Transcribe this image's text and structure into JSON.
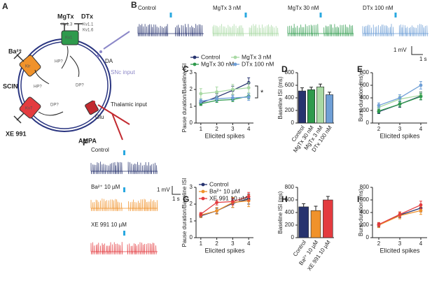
{
  "panel_labels": [
    "A",
    "B",
    "C",
    "D",
    "E",
    "F",
    "G",
    "H",
    "I"
  ],
  "diagram": {
    "ba": "Ba²⁺",
    "mgtx": "MgTx",
    "dtx": "DTx",
    "kv13": "Kv1.3",
    "kv11": "Kv1.1",
    "kv16": "Kv1.6",
    "kir": "Kir",
    "kv7": "Kv7",
    "kv1": "Kv1",
    "hp1": "HP?",
    "hp2": "HP?",
    "dp1": "DP?",
    "dp2": "DP?",
    "da": "DA",
    "snc": "SNc input",
    "scin": "SCIN",
    "glu": "Glu",
    "thal": "Thalamic input",
    "xe": "XE 991",
    "ampa": "AMPA"
  },
  "traces_b": [
    "Control",
    "MgTx 3 nM",
    "MgTx 30 nM",
    "DTx 100 nM"
  ],
  "traces_f": [
    "Control",
    "Ba²⁺ 10 µM",
    "XE 991 10 µM"
  ],
  "scale_bar": {
    "voltage": "1 mV",
    "time": "1 s"
  },
  "chart_data": [
    {
      "type": "line",
      "panel": "C",
      "ylabel": "Pause duration/Baseline ISI",
      "xlabel": "Elicited spikes",
      "x": [
        1,
        2,
        3,
        4
      ],
      "xlim": [
        0.7,
        4.3
      ],
      "xticks": [
        1,
        2,
        3,
        4
      ],
      "ylim": [
        0,
        3
      ],
      "yticks": [
        0,
        1,
        2,
        3
      ],
      "legend": "above",
      "annotation": "*",
      "series": [
        {
          "name": "Control",
          "color": "#27336f",
          "values": [
            1.2,
            1.55,
            1.95,
            2.4
          ],
          "errors": [
            0.15,
            0.2,
            0.25,
            0.3
          ]
        },
        {
          "name": "MgTx 3 nM",
          "color": "#a9d9a4",
          "values": [
            1.75,
            1.85,
            2.0,
            2.1
          ],
          "errors": [
            0.3,
            0.3,
            0.3,
            0.3
          ]
        },
        {
          "name": "MgTx 30 nM",
          "color": "#2e9a4c",
          "values": [
            1.15,
            1.35,
            1.4,
            1.6
          ],
          "errors": [
            0.1,
            0.12,
            0.12,
            0.15
          ]
        },
        {
          "name": "DTx 100 nM",
          "color": "#6f9fd6",
          "values": [
            1.3,
            1.45,
            1.5,
            1.55
          ],
          "errors": [
            0.12,
            0.15,
            0.15,
            0.2
          ]
        }
      ]
    },
    {
      "type": "bar",
      "panel": "D",
      "ylabel": "Baseline ISI (ms)",
      "categories": [
        "Control",
        "MgTx 30 nM",
        "MgTx 3 nM",
        "DTx 100 nM"
      ],
      "values": [
        510,
        530,
        575,
        450
      ],
      "errors": [
        50,
        40,
        45,
        40
      ],
      "colors": [
        "#27336f",
        "#2e9a4c",
        "#a9d9a4",
        "#6f9fd6"
      ],
      "ylim": [
        0,
        800
      ],
      "yticks": [
        0,
        200,
        400,
        600,
        800
      ]
    },
    {
      "type": "line",
      "panel": "E",
      "ylabel": "Burst duration (ms)",
      "xlabel": "Elicited spikes",
      "x": [
        2,
        3,
        4
      ],
      "xlim": [
        1.7,
        4.3
      ],
      "xticks": [
        2,
        3,
        4
      ],
      "ylim": [
        0,
        800
      ],
      "yticks": [
        0,
        200,
        400,
        600,
        800
      ],
      "series": [
        {
          "name": "Control",
          "color": "#27336f",
          "values": [
            180,
            300,
            430
          ],
          "errors": [
            30,
            50,
            60
          ]
        },
        {
          "name": "MgTx 3 nM",
          "color": "#a9d9a4",
          "values": [
            250,
            380,
            440
          ],
          "errors": [
            40,
            50,
            60
          ]
        },
        {
          "name": "MgTx 30 nM",
          "color": "#2e9a4c",
          "values": [
            190,
            300,
            420
          ],
          "errors": [
            30,
            40,
            50
          ]
        },
        {
          "name": "DTx 100 nM",
          "color": "#6f9fd6",
          "values": [
            280,
            400,
            600
          ],
          "errors": [
            40,
            50,
            60
          ]
        }
      ]
    },
    {
      "type": "line",
      "panel": "G",
      "ylabel": "Pause duration/Baseline ISI",
      "xlabel": "Elicited spikes",
      "x": [
        1,
        2,
        3,
        4
      ],
      "xlim": [
        0.7,
        4.3
      ],
      "xticks": [
        1,
        2,
        3,
        4
      ],
      "ylim": [
        0,
        3
      ],
      "yticks": [
        0,
        1,
        2,
        3
      ],
      "legend": "upper left",
      "series": [
        {
          "name": "Control",
          "color": "#27336f",
          "values": [
            1.3,
            1.6,
            2.05,
            2.3
          ],
          "errors": [
            0.1,
            0.15,
            0.25,
            0.3
          ]
        },
        {
          "name": "Ba²⁺ 10 µM",
          "color": "#f0922b",
          "values": [
            1.35,
            1.6,
            2.1,
            2.2
          ],
          "errors": [
            0.15,
            0.2,
            0.3,
            0.35
          ]
        },
        {
          "name": "XE 991 10 µM",
          "color": "#e33b3f",
          "values": [
            1.4,
            2.1,
            2.15,
            2.45
          ],
          "errors": [
            0.1,
            0.15,
            0.2,
            0.25
          ]
        }
      ]
    },
    {
      "type": "bar",
      "panel": "H",
      "ylabel": "Baseline ISI (ms)",
      "categories": [
        "Control",
        "Ba²⁺ 10 µM",
        "XE 991 10 µM"
      ],
      "values": [
        490,
        430,
        600
      ],
      "errors": [
        50,
        70,
        55
      ],
      "colors": [
        "#27336f",
        "#f0922b",
        "#e33b3f"
      ],
      "ylim": [
        0,
        800
      ],
      "yticks": [
        0,
        200,
        400,
        600,
        800
      ]
    },
    {
      "type": "line",
      "panel": "I",
      "ylabel": "Burst duration (ms)",
      "xlabel": "Elicited spikes",
      "x": [
        2,
        3,
        4
      ],
      "xlim": [
        1.7,
        4.3
      ],
      "xticks": [
        2,
        3,
        4
      ],
      "ylim": [
        0,
        800
      ],
      "yticks": [
        0,
        200,
        400,
        600,
        800
      ],
      "series": [
        {
          "name": "Control",
          "color": "#27336f",
          "values": [
            200,
            360,
            470
          ],
          "errors": [
            30,
            40,
            60
          ]
        },
        {
          "name": "Ba²⁺ 10 µM",
          "color": "#f0922b",
          "values": [
            200,
            350,
            430
          ],
          "errors": [
            40,
            50,
            60
          ]
        },
        {
          "name": "XE 991 10 µM",
          "color": "#e33b3f",
          "values": [
            210,
            370,
            520
          ],
          "errors": [
            30,
            40,
            60
          ]
        }
      ]
    }
  ]
}
